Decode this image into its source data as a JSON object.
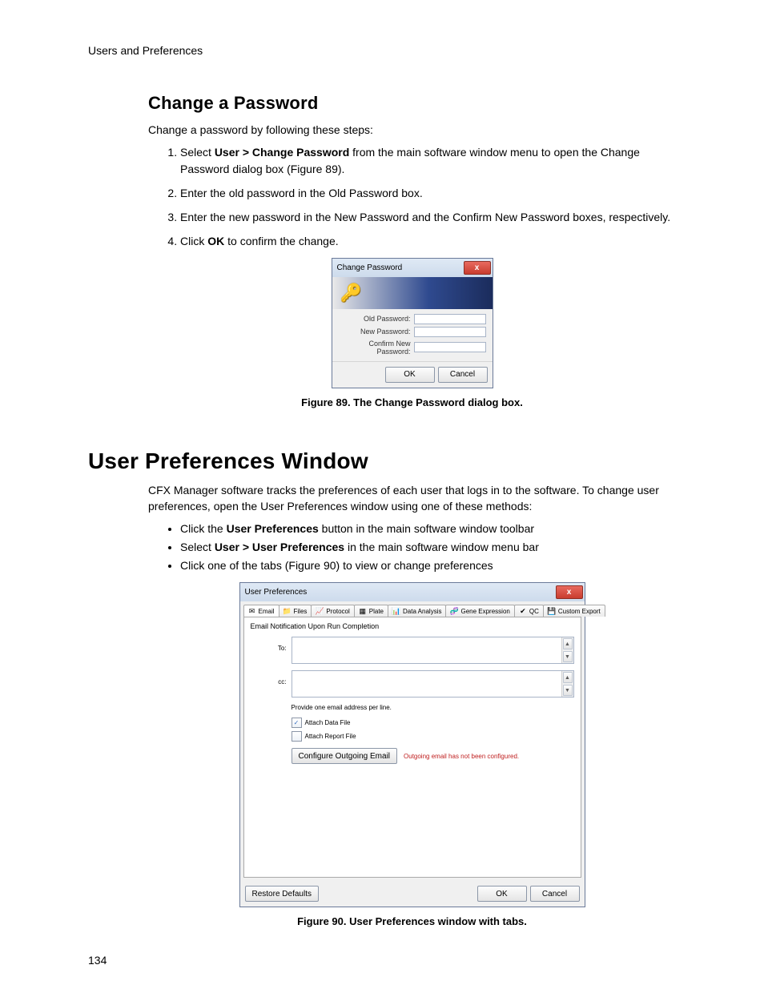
{
  "page": {
    "running_head": "Users and Preferences",
    "page_number": "134"
  },
  "section1": {
    "heading": "Change a Password",
    "intro": "Change a password by following these steps:",
    "step1_a": "Select ",
    "step1_bold": "User > Change Password",
    "step1_b": " from the main software window menu to open the Change Password dialog box (Figure 89).",
    "step2": "Enter the old password in the Old Password box.",
    "step3": "Enter the new password in the New Password and the Confirm New Password boxes, respectively.",
    "step4_a": "Click ",
    "step4_bold": "OK",
    "step4_b": " to confirm the change.",
    "fig_caption": "Figure 89. The Change Password dialog box."
  },
  "cp_dialog": {
    "title": "Change Password",
    "close_glyph": "x",
    "keys_glyph": "🔑",
    "labels": {
      "old": "Old Password:",
      "new": "New Password:",
      "confirm": "Confirm New Password:"
    },
    "buttons": {
      "ok": "OK",
      "cancel": "Cancel"
    }
  },
  "section2": {
    "heading": "User Preferences Window",
    "intro": "CFX Manager software tracks the preferences of each user that logs in to the software. To change user preferences, open the User Preferences window using one of these methods:",
    "b1_a": "Click the ",
    "b1_bold": "User Preferences",
    "b1_b": " button in the main software window toolbar",
    "b2_a": "Select ",
    "b2_bold": "User > User Preferences",
    "b2_b": " in the main software window menu bar",
    "b3": "Click one of the tabs (Figure 90) to view or change preferences",
    "fig_caption": "Figure 90. User Preferences window with tabs."
  },
  "up_window": {
    "title": "User Preferences",
    "close_glyph": "x",
    "tabs": {
      "email": {
        "label": "Email",
        "icon": "✉",
        "icon_color": "#5aa0e6"
      },
      "files": {
        "label": "Files",
        "icon": "📁",
        "icon_color": "#e6b65a"
      },
      "protocol": {
        "label": "Protocol",
        "icon": "📈",
        "icon_color": "#4a9a4a"
      },
      "plate": {
        "label": "Plate",
        "icon": "▦",
        "icon_color": "#6a85c2"
      },
      "da": {
        "label": "Data Analysis",
        "icon": "📊",
        "icon_color": "#6aa84f"
      },
      "ge": {
        "label": "Gene Expression",
        "icon": "🧬",
        "icon_color": "#c96a3a"
      },
      "qc": {
        "label": "QC",
        "icon": "✔",
        "icon_color": "#5aa85a"
      },
      "ce": {
        "label": "Custom Export",
        "icon": "💾",
        "icon_color": "#6a85c2"
      }
    },
    "panel": {
      "title": "Email Notification Upon Run Completion",
      "to_label": "To:",
      "cc_label": "cc:",
      "hint": "Provide one email address per line.",
      "chk_data": "Attach Data File",
      "chk_report": "Attach Report File",
      "config_btn": "Configure Outgoing Email",
      "warn": "Outgoing email has not been configured.",
      "scroll_up": "▲",
      "scroll_down": "▼"
    },
    "bottom": {
      "restore": "Restore Defaults",
      "ok": "OK",
      "cancel": "Cancel"
    },
    "colors": {
      "close_bg_top": "#e86a5f",
      "close_bg_bot": "#c93c2e",
      "warn_text": "#c02020"
    }
  }
}
